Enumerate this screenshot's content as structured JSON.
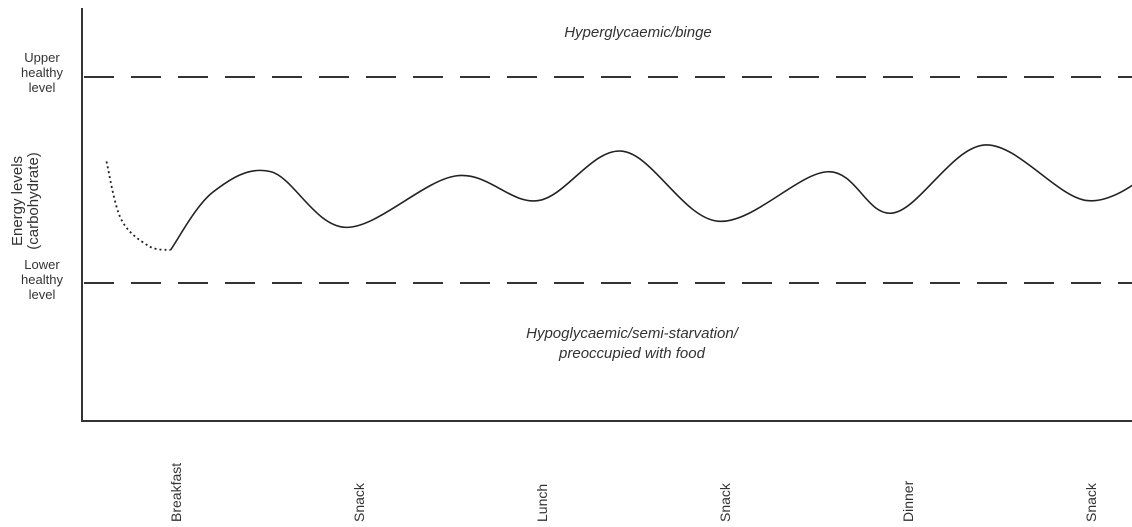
{
  "chart_data": {
    "type": "line",
    "ylabel": "Energy levels\n(carbohydrate)",
    "y_reference_lines": {
      "upper": {
        "label": "Upper\nhealthy\nlevel",
        "value": 1
      },
      "lower": {
        "label": "Lower\nhealthy\nlevel",
        "value": 0
      }
    },
    "ylim": [
      -0.65,
      1.3
    ],
    "zones": {
      "above": "Hyperglycaemic/binge",
      "below": "Hypoglycaemic/semi-starvation/\npreoccupied with food"
    },
    "categories": [
      "Breakfast",
      "Snack",
      "Lunch",
      "Snack",
      "Dinner",
      "Snack"
    ],
    "xlim": [
      -0.4,
      5.4
    ],
    "curve": {
      "dotted_segment": [
        {
          "x": -0.38,
          "y": 0.59
        },
        {
          "x": -0.3,
          "y": 0.31
        },
        {
          "x": -0.15,
          "y": 0.18
        },
        {
          "x": -0.03,
          "y": 0.16
        }
      ],
      "solid_segment": [
        {
          "x": -0.03,
          "y": 0.16
        },
        {
          "x": 0.2,
          "y": 0.44
        },
        {
          "x": 0.52,
          "y": 0.54
        },
        {
          "x": 0.93,
          "y": 0.27
        },
        {
          "x": 1.53,
          "y": 0.52
        },
        {
          "x": 1.98,
          "y": 0.4
        },
        {
          "x": 2.44,
          "y": 0.64
        },
        {
          "x": 2.96,
          "y": 0.3
        },
        {
          "x": 3.56,
          "y": 0.54
        },
        {
          "x": 3.92,
          "y": 0.34
        },
        {
          "x": 4.42,
          "y": 0.67
        },
        {
          "x": 4.98,
          "y": 0.4
        },
        {
          "x": 5.4,
          "y": 0.58
        }
      ]
    }
  }
}
